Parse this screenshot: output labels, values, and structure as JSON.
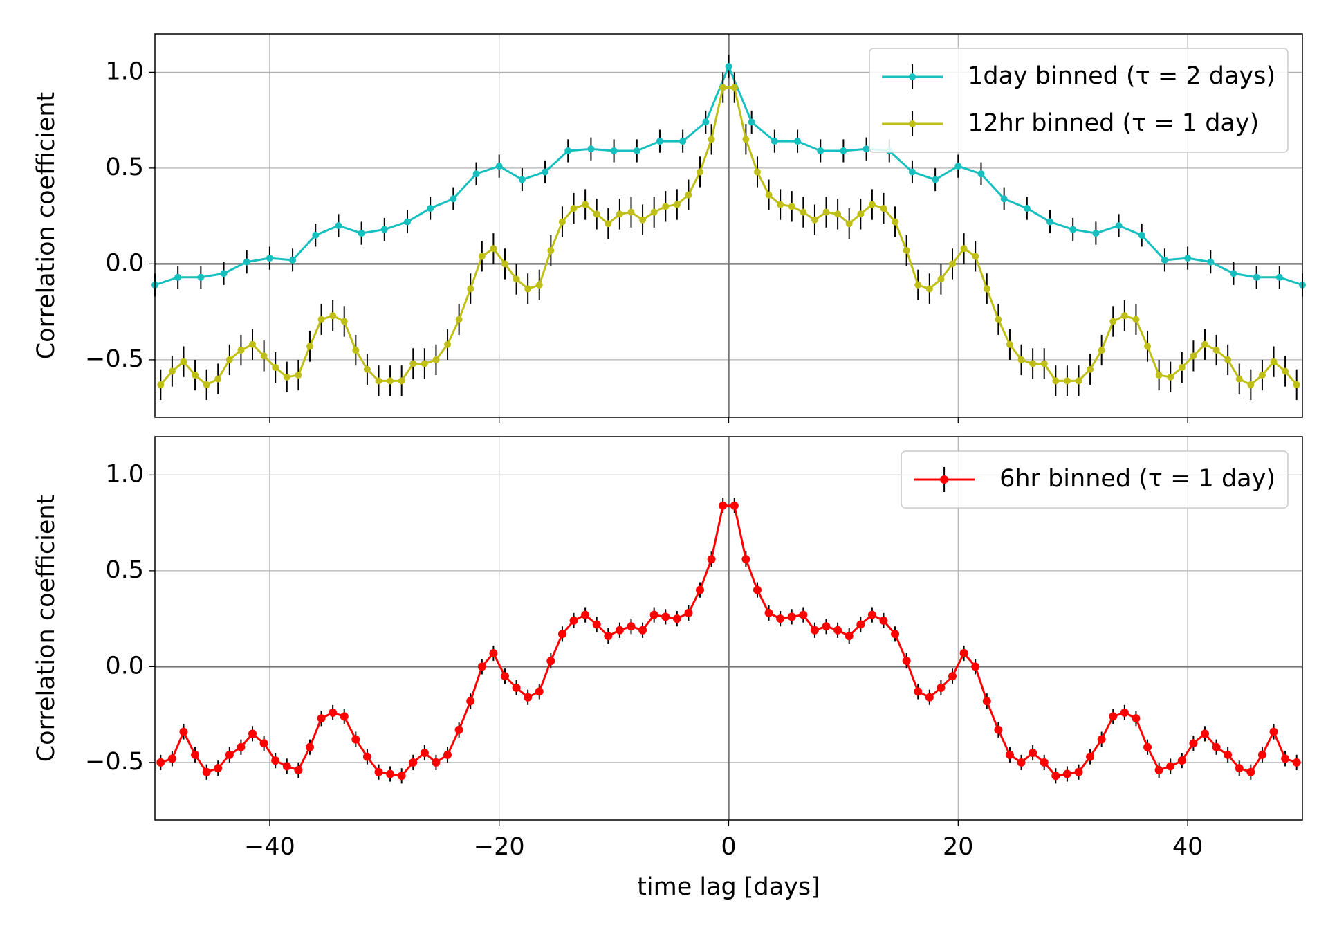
{
  "chart_data": [
    {
      "type": "line",
      "ylabel": "Correlation coefficient",
      "xlim": [
        -50,
        50
      ],
      "ylim": [
        -0.8,
        1.2
      ],
      "xticks": [
        -40,
        -20,
        0,
        20,
        40
      ],
      "yticks": [
        {
          "value": -0.5,
          "label": "−0.5"
        },
        {
          "value": 0,
          "label": "0.0"
        },
        0.5,
        {
          "value": 1,
          "label": "1.0"
        }
      ],
      "grid": true,
      "legend": "upper right",
      "series": [
        {
          "name": "1day binned (τ = 2 days)",
          "color": "#17bfbf",
          "x": [
            -50,
            -48,
            -46,
            -44,
            -42,
            -40,
            -38,
            -36,
            -34,
            -32,
            -30,
            -28,
            -26,
            -24,
            -22,
            -20,
            -18,
            -16,
            -14,
            -12,
            -10,
            -8,
            -6,
            -4,
            -2,
            0,
            2,
            4,
            6,
            8,
            10,
            12,
            14,
            16,
            18,
            20,
            22,
            24,
            26,
            28,
            30,
            32,
            34,
            36,
            38,
            40,
            42,
            44,
            46,
            48,
            50
          ],
          "values": [
            -0.11,
            -0.07,
            -0.07,
            -0.05,
            0.01,
            0.03,
            0.02,
            0.15,
            0.2,
            0.16,
            0.18,
            0.22,
            0.29,
            0.34,
            0.47,
            0.51,
            0.44,
            0.48,
            0.59,
            0.6,
            0.59,
            0.59,
            0.64,
            0.64,
            0.74,
            1.03,
            0.74,
            0.64,
            0.64,
            0.59,
            0.59,
            0.6,
            0.59,
            0.48,
            0.44,
            0.51,
            0.47,
            0.34,
            0.29,
            0.22,
            0.18,
            0.16,
            0.2,
            0.15,
            0.02,
            0.03,
            0.01,
            -0.05,
            -0.07,
            -0.07,
            -0.11
          ],
          "errors": [
            0.06,
            0.06,
            0.06,
            0.06,
            0.06,
            0.06,
            0.06,
            0.06,
            0.06,
            0.06,
            0.06,
            0.06,
            0.06,
            0.06,
            0.06,
            0.06,
            0.06,
            0.06,
            0.06,
            0.06,
            0.06,
            0.06,
            0.06,
            0.06,
            0.06,
            0.06,
            0.06,
            0.06,
            0.06,
            0.06,
            0.06,
            0.06,
            0.06,
            0.06,
            0.06,
            0.06,
            0.06,
            0.06,
            0.06,
            0.06,
            0.06,
            0.06,
            0.06,
            0.06,
            0.06,
            0.06,
            0.06,
            0.06,
            0.06,
            0.06,
            0.06
          ]
        },
        {
          "name": "12hr binned (τ = 1 day)",
          "color": "#bfbf17",
          "x": [
            -49.5,
            -48.5,
            -47.5,
            -46.5,
            -45.5,
            -44.5,
            -43.5,
            -42.5,
            -41.5,
            -40.5,
            -39.5,
            -38.5,
            -37.5,
            -36.5,
            -35.5,
            -34.5,
            -33.5,
            -32.5,
            -31.5,
            -30.5,
            -29.5,
            -28.5,
            -27.5,
            -26.5,
            -25.5,
            -24.5,
            -23.5,
            -22.5,
            -21.5,
            -20.5,
            -19.5,
            -18.5,
            -17.5,
            -16.5,
            -15.5,
            -14.5,
            -13.5,
            -12.5,
            -11.5,
            -10.5,
            -9.5,
            -8.5,
            -7.5,
            -6.5,
            -5.5,
            -4.5,
            -3.5,
            -2.5,
            -1.5,
            -0.5,
            0.5,
            1.5,
            2.5,
            3.5,
            4.5,
            5.5,
            6.5,
            7.5,
            8.5,
            9.5,
            10.5,
            11.5,
            12.5,
            13.5,
            14.5,
            15.5,
            16.5,
            17.5,
            18.5,
            19.5,
            20.5,
            21.5,
            22.5,
            23.5,
            24.5,
            25.5,
            26.5,
            27.5,
            28.5,
            29.5,
            30.5,
            31.5,
            32.5,
            33.5,
            34.5,
            35.5,
            36.5,
            37.5,
            38.5,
            39.5,
            40.5,
            41.5,
            42.5,
            43.5,
            44.5,
            45.5,
            46.5,
            47.5,
            48.5,
            49.5
          ],
          "values": [
            -0.63,
            -0.56,
            -0.51,
            -0.58,
            -0.63,
            -0.6,
            -0.5,
            -0.45,
            -0.42,
            -0.48,
            -0.54,
            -0.59,
            -0.58,
            -0.43,
            -0.29,
            -0.27,
            -0.3,
            -0.45,
            -0.55,
            -0.61,
            -0.61,
            -0.61,
            -0.52,
            -0.52,
            -0.5,
            -0.42,
            -0.29,
            -0.13,
            0.04,
            0.08,
            0.0,
            -0.08,
            -0.13,
            -0.11,
            0.07,
            0.22,
            0.29,
            0.31,
            0.26,
            0.21,
            0.26,
            0.27,
            0.23,
            0.27,
            0.3,
            0.31,
            0.36,
            0.48,
            0.65,
            0.92,
            0.92,
            0.65,
            0.48,
            0.36,
            0.31,
            0.3,
            0.27,
            0.23,
            0.27,
            0.26,
            0.21,
            0.26,
            0.31,
            0.29,
            0.22,
            0.07,
            -0.11,
            -0.13,
            -0.08,
            0.0,
            0.08,
            0.04,
            -0.13,
            -0.29,
            -0.42,
            -0.5,
            -0.52,
            -0.52,
            -0.61,
            -0.61,
            -0.61,
            -0.55,
            -0.45,
            -0.3,
            -0.27,
            -0.29,
            -0.43,
            -0.58,
            -0.59,
            -0.54,
            -0.48,
            -0.42,
            -0.45,
            -0.5,
            -0.6,
            -0.63,
            -0.58,
            -0.51,
            -0.56,
            -0.63
          ],
          "errors": [
            0.08,
            0.08,
            0.08,
            0.08,
            0.08,
            0.08,
            0.08,
            0.08,
            0.08,
            0.08,
            0.08,
            0.08,
            0.08,
            0.08,
            0.08,
            0.08,
            0.08,
            0.08,
            0.08,
            0.08,
            0.08,
            0.08,
            0.08,
            0.08,
            0.08,
            0.08,
            0.08,
            0.08,
            0.08,
            0.08,
            0.08,
            0.08,
            0.08,
            0.08,
            0.08,
            0.08,
            0.08,
            0.08,
            0.08,
            0.08,
            0.08,
            0.08,
            0.08,
            0.08,
            0.08,
            0.08,
            0.08,
            0.08,
            0.08,
            0.08,
            0.08,
            0.08,
            0.08,
            0.08,
            0.08,
            0.08,
            0.08,
            0.08,
            0.08,
            0.08,
            0.08,
            0.08,
            0.08,
            0.08,
            0.08,
            0.08,
            0.08,
            0.08,
            0.08,
            0.08,
            0.08,
            0.08,
            0.08,
            0.08,
            0.08,
            0.08,
            0.08,
            0.08,
            0.08,
            0.08,
            0.08,
            0.08,
            0.08,
            0.08,
            0.08,
            0.08,
            0.08,
            0.08,
            0.08,
            0.08,
            0.08,
            0.08,
            0.08,
            0.08,
            0.08,
            0.08,
            0.08,
            0.08,
            0.08,
            0.08
          ]
        }
      ]
    },
    {
      "type": "line",
      "ylabel": "Correlation coefficient",
      "xlabel": "time lag [days]",
      "xlim": [
        -50,
        50
      ],
      "ylim": [
        -0.8,
        1.2
      ],
      "xticks": [
        {
          "value": -40,
          "label": "−40"
        },
        {
          "value": -20,
          "label": "−20"
        },
        0,
        20,
        40
      ],
      "yticks": [
        {
          "value": -0.5,
          "label": "−0.5"
        },
        {
          "value": 0,
          "label": "0.0"
        },
        0.5,
        {
          "value": 1,
          "label": "1.0"
        }
      ],
      "grid": true,
      "legend": "upper right",
      "series": [
        {
          "name": "6hr binned (τ = 1 day)",
          "color": "#ff0000",
          "x": [
            -49.5,
            -48.5,
            -47.5,
            -46.5,
            -45.5,
            -44.5,
            -43.5,
            -42.5,
            -41.5,
            -40.5,
            -39.5,
            -38.5,
            -37.5,
            -36.5,
            -35.5,
            -34.5,
            -33.5,
            -32.5,
            -31.5,
            -30.5,
            -29.5,
            -28.5,
            -27.5,
            -26.5,
            -25.5,
            -24.5,
            -23.5,
            -22.5,
            -21.5,
            -20.5,
            -19.5,
            -18.5,
            -17.5,
            -16.5,
            -15.5,
            -14.5,
            -13.5,
            -12.5,
            -11.5,
            -10.5,
            -9.5,
            -8.5,
            -7.5,
            -6.5,
            -5.5,
            -4.5,
            -3.5,
            -2.5,
            -1.5,
            -0.5,
            0.5,
            1.5,
            2.5,
            3.5,
            4.5,
            5.5,
            6.5,
            7.5,
            8.5,
            9.5,
            10.5,
            11.5,
            12.5,
            13.5,
            14.5,
            15.5,
            16.5,
            17.5,
            18.5,
            19.5,
            20.5,
            21.5,
            22.5,
            23.5,
            24.5,
            25.5,
            26.5,
            27.5,
            28.5,
            29.5,
            30.5,
            31.5,
            32.5,
            33.5,
            34.5,
            35.5,
            36.5,
            37.5,
            38.5,
            39.5,
            40.5,
            41.5,
            42.5,
            43.5,
            44.5,
            45.5,
            46.5,
            47.5,
            48.5,
            49.5
          ],
          "values": [
            -0.5,
            -0.48,
            -0.34,
            -0.46,
            -0.55,
            -0.53,
            -0.46,
            -0.42,
            -0.35,
            -0.4,
            -0.49,
            -0.52,
            -0.54,
            -0.42,
            -0.27,
            -0.24,
            -0.26,
            -0.38,
            -0.47,
            -0.55,
            -0.56,
            -0.57,
            -0.5,
            -0.45,
            -0.5,
            -0.46,
            -0.33,
            -0.18,
            0.0,
            0.07,
            -0.05,
            -0.11,
            -0.16,
            -0.13,
            0.03,
            0.17,
            0.24,
            0.27,
            0.22,
            0.16,
            0.19,
            0.21,
            0.19,
            0.27,
            0.26,
            0.25,
            0.28,
            0.4,
            0.56,
            0.84,
            0.84,
            0.56,
            0.4,
            0.28,
            0.25,
            0.26,
            0.27,
            0.19,
            0.21,
            0.19,
            0.16,
            0.22,
            0.27,
            0.24,
            0.17,
            0.03,
            -0.13,
            -0.16,
            -0.11,
            -0.05,
            0.07,
            0.0,
            -0.18,
            -0.33,
            -0.46,
            -0.5,
            -0.45,
            -0.5,
            -0.57,
            -0.56,
            -0.55,
            -0.47,
            -0.38,
            -0.26,
            -0.24,
            -0.27,
            -0.42,
            -0.54,
            -0.52,
            -0.49,
            -0.4,
            -0.35,
            -0.42,
            -0.46,
            -0.53,
            -0.55,
            -0.46,
            -0.34,
            -0.48,
            -0.5
          ],
          "errors": [
            0.04,
            0.04,
            0.04,
            0.04,
            0.04,
            0.04,
            0.04,
            0.04,
            0.04,
            0.04,
            0.04,
            0.04,
            0.04,
            0.04,
            0.04,
            0.04,
            0.04,
            0.04,
            0.04,
            0.04,
            0.04,
            0.04,
            0.04,
            0.04,
            0.04,
            0.04,
            0.04,
            0.04,
            0.04,
            0.04,
            0.04,
            0.04,
            0.04,
            0.04,
            0.04,
            0.04,
            0.04,
            0.04,
            0.04,
            0.04,
            0.04,
            0.04,
            0.04,
            0.04,
            0.04,
            0.04,
            0.04,
            0.04,
            0.04,
            0.04,
            0.04,
            0.04,
            0.04,
            0.04,
            0.04,
            0.04,
            0.04,
            0.04,
            0.04,
            0.04,
            0.04,
            0.04,
            0.04,
            0.04,
            0.04,
            0.04,
            0.04,
            0.04,
            0.04,
            0.04,
            0.04,
            0.04,
            0.04,
            0.04,
            0.04,
            0.04,
            0.04,
            0.04,
            0.04,
            0.04,
            0.04,
            0.04,
            0.04,
            0.04,
            0.04,
            0.04,
            0.04,
            0.04,
            0.04,
            0.04,
            0.04,
            0.04,
            0.04,
            0.04,
            0.04,
            0.04,
            0.04,
            0.04,
            0.04,
            0.04
          ]
        }
      ]
    }
  ]
}
